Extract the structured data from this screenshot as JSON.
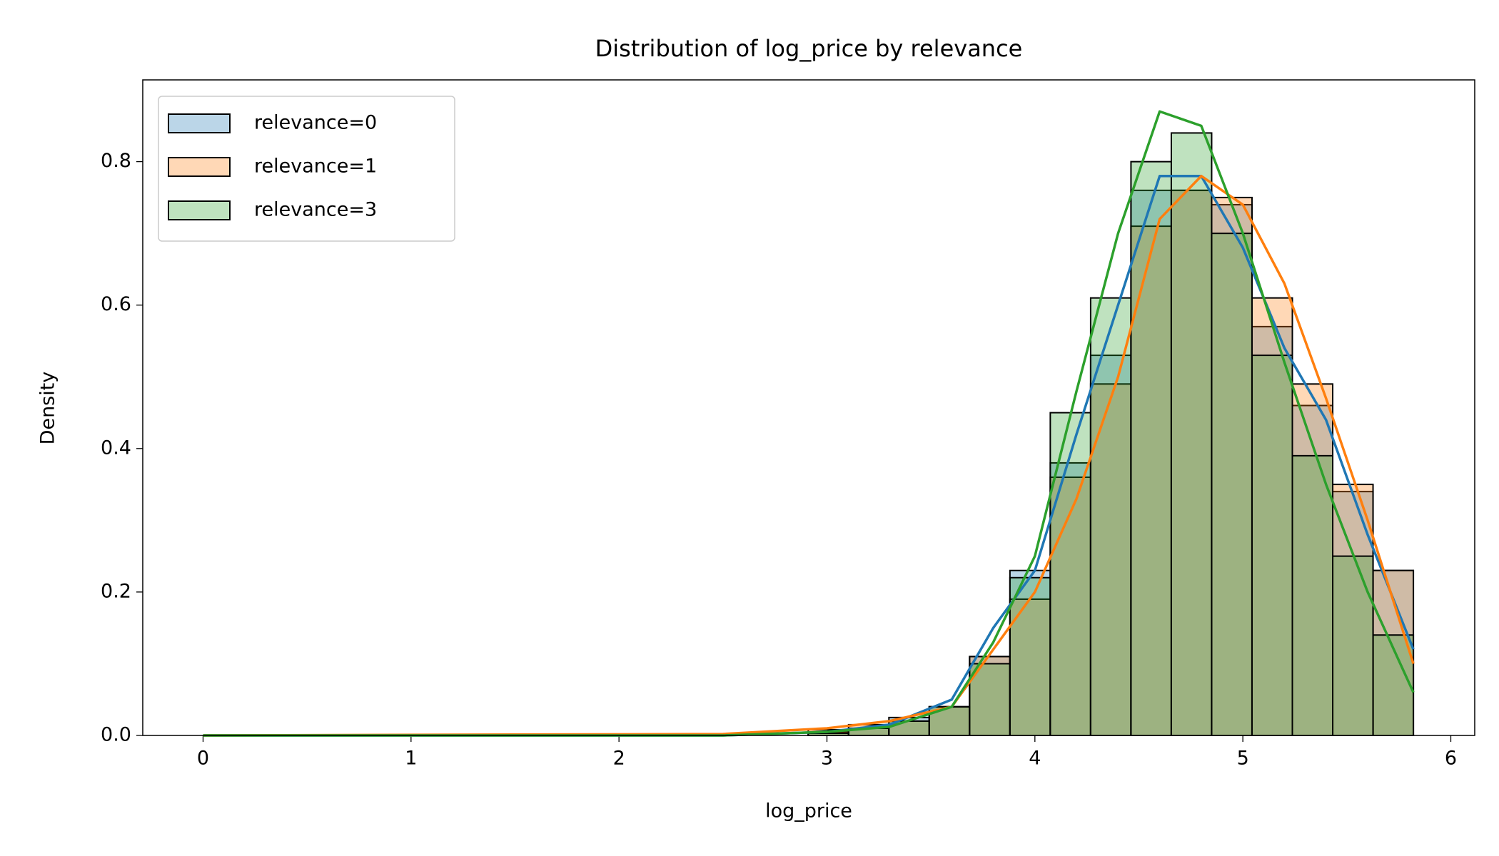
{
  "chart_data": {
    "type": "histogram",
    "title": "Distribution of log_price by relevance",
    "x_label": "log_price",
    "y_label": "Density",
    "bins": [
      0,
      0.194,
      0.388,
      0.582,
      0.776,
      0.97,
      1.164,
      1.358,
      1.552,
      1.746,
      1.94,
      2.134,
      2.328,
      2.522,
      2.716,
      2.91,
      3.104,
      3.298,
      3.492,
      3.686,
      3.88,
      4.074,
      4.268,
      4.462,
      4.656,
      4.85,
      5.044,
      5.238,
      5.432,
      5.626,
      5.82
    ],
    "kde_x": [
      0,
      2.5,
      3.0,
      3.3,
      3.6,
      3.8,
      4.0,
      4.2,
      4.4,
      4.6,
      4.8,
      5.0,
      5.2,
      5.4,
      5.6,
      5.82
    ],
    "series": [
      {
        "name": "relevance=0",
        "color": "#1f77b4",
        "values": [
          0,
          0,
          0,
          0,
          0,
          0,
          0,
          0,
          0,
          0,
          0,
          0,
          0,
          0,
          0,
          0.005,
          0.01,
          0.025,
          0.04,
          0.11,
          0.23,
          0.38,
          0.53,
          0.76,
          0.76,
          0.74,
          0.57,
          0.46,
          0.34,
          0.23
        ],
        "kde": [
          0,
          0,
          0.005,
          0.015,
          0.05,
          0.15,
          0.23,
          0.42,
          0.6,
          0.78,
          0.78,
          0.68,
          0.54,
          0.44,
          0.28,
          0.12
        ]
      },
      {
        "name": "relevance=1",
        "color": "#ff7f0e",
        "values": [
          0,
          0,
          0,
          0,
          0,
          0,
          0,
          0,
          0,
          0,
          0,
          0,
          0,
          0,
          0,
          0.008,
          0.015,
          0.02,
          0.04,
          0.11,
          0.19,
          0.36,
          0.49,
          0.71,
          0.76,
          0.75,
          0.61,
          0.49,
          0.35,
          0.23
        ],
        "kde": [
          0,
          0.002,
          0.01,
          0.02,
          0.04,
          0.12,
          0.2,
          0.33,
          0.5,
          0.72,
          0.78,
          0.74,
          0.63,
          0.47,
          0.3,
          0.1
        ]
      },
      {
        "name": "relevance=3",
        "color": "#2ca02c",
        "values": [
          0,
          0,
          0,
          0,
          0,
          0,
          0,
          0,
          0,
          0,
          0,
          0,
          0,
          0,
          0,
          0.003,
          0.01,
          0.02,
          0.04,
          0.1,
          0.22,
          0.45,
          0.61,
          0.8,
          0.84,
          0.7,
          0.53,
          0.39,
          0.25,
          0.14
        ],
        "kde": [
          0,
          0,
          0.005,
          0.012,
          0.04,
          0.13,
          0.25,
          0.48,
          0.7,
          0.87,
          0.85,
          0.7,
          0.52,
          0.35,
          0.2,
          0.06
        ]
      }
    ],
    "xlim": [
      -0.29,
      6.115
    ],
    "xticks": [
      0,
      1,
      2,
      3,
      4,
      5,
      6
    ],
    "ylim": [
      0,
      0.914
    ],
    "yticks": [
      {
        "value": 0,
        "label": "0.0"
      },
      {
        "value": 0.2,
        "label": "0.2"
      },
      {
        "value": 0.4,
        "label": "0.4"
      },
      {
        "value": 0.6,
        "label": "0.6"
      },
      {
        "value": 0.8,
        "label": "0.8"
      }
    ],
    "legend": "upper left",
    "bar_alpha": 0.3
  }
}
